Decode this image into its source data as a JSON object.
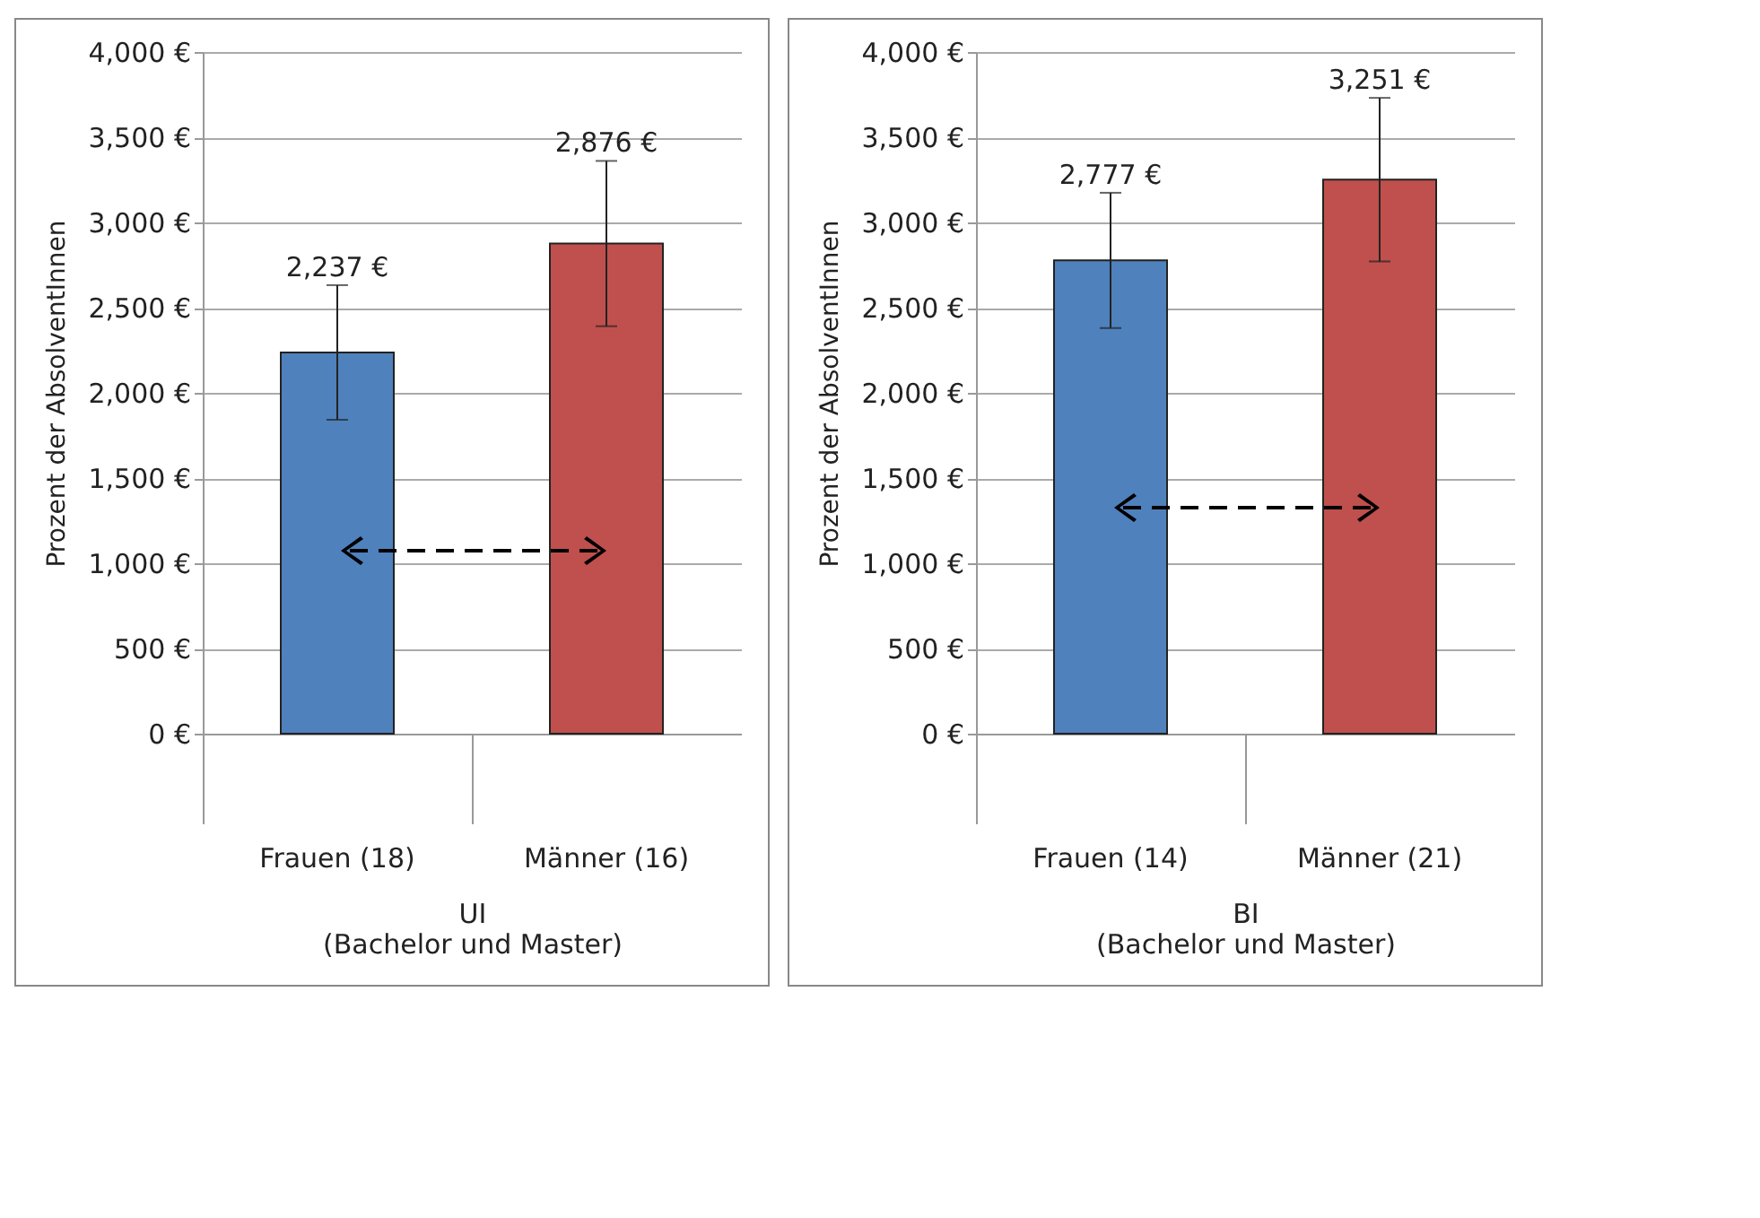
{
  "chart_data": [
    {
      "type": "bar",
      "xlabel": "UI (Bachelor und Master)",
      "ylabel": "Prozent der AbsolventInnen",
      "categories": [
        "Frauen (18)",
        "Männer (16)"
      ],
      "values": [
        2237,
        2876
      ],
      "colors": [
        "#4f81bd",
        "#c0504d"
      ],
      "errors": [
        395,
        485
      ],
      "value_labels": [
        "2,237 €",
        "2,876 €"
      ],
      "ylim": [
        0,
        4000
      ],
      "yticks": [
        {
          "value": 0,
          "label": "0 €"
        },
        {
          "value": 500,
          "label": "500 €"
        },
        {
          "value": 1000,
          "label": "1,000 €"
        },
        {
          "value": 1500,
          "label": "1,500 €"
        },
        {
          "value": 2000,
          "label": "2,000 €"
        },
        {
          "value": 2500,
          "label": "2,500 €"
        },
        {
          "value": 3000,
          "label": "3,000 €"
        },
        {
          "value": 3500,
          "label": "3,500 €"
        },
        {
          "value": 4000,
          "label": "4,000 €"
        }
      ],
      "grid": "y"
    },
    {
      "type": "bar",
      "xlabel": "BI (Bachelor und Master)",
      "ylabel": "Prozent der AbsolventInnen",
      "categories": [
        "Frauen (14)",
        "Männer (21)"
      ],
      "values": [
        2777,
        3251
      ],
      "colors": [
        "#4f81bd",
        "#c0504d"
      ],
      "errors": [
        397,
        480
      ],
      "value_labels": [
        "2,777 €",
        "3,251 €"
      ],
      "ylim": [
        0,
        4000
      ],
      "yticks": [
        {
          "value": 0,
          "label": "0 €"
        },
        {
          "value": 500,
          "label": "500 €"
        },
        {
          "value": 1000,
          "label": "1,000 €"
        },
        {
          "value": 1500,
          "label": "1,500 €"
        },
        {
          "value": 2000,
          "label": "2,000 €"
        },
        {
          "value": 2500,
          "label": "2,500 €"
        },
        {
          "value": 3000,
          "label": "3,000 €"
        },
        {
          "value": 3500,
          "label": "3,500 €"
        },
        {
          "value": 4000,
          "label": "4,000 €"
        }
      ],
      "grid": "y"
    }
  ]
}
